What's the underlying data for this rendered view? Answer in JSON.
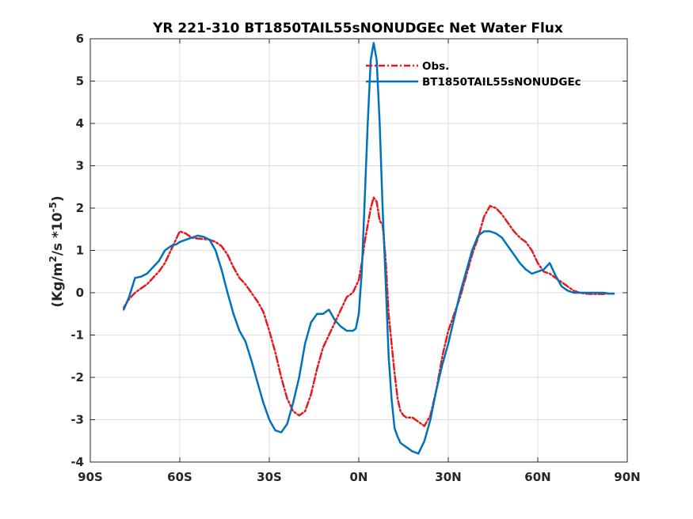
{
  "chart_data": {
    "type": "line",
    "title": "YR 221-310 BT1850TAIL55sNONUDGEc  Net Water Flux",
    "ylabel": {
      "prefix": "(Kg/m",
      "sup1": "2",
      "mid": "/s *10",
      "sup2": "-5",
      "suffix": ")"
    },
    "xlabel": "",
    "xlim": [
      -90,
      90
    ],
    "ylim": [
      -4,
      6
    ],
    "xticks": [
      -90,
      -60,
      -30,
      0,
      30,
      60,
      90
    ],
    "xtick_labels": [
      "90S",
      "60S",
      "30S",
      "0N",
      "30N",
      "60N",
      "90N"
    ],
    "yticks": [
      -4,
      -3,
      -2,
      -1,
      0,
      1,
      2,
      3,
      4,
      5,
      6
    ],
    "ytick_labels": [
      "-4",
      "-3",
      "-2",
      "-1",
      "0",
      "1",
      "2",
      "3",
      "4",
      "5",
      "6"
    ],
    "grid": true,
    "legend_position": "top-right",
    "series": [
      {
        "name": "Obs.",
        "color": "#e41a1c",
        "style": "dash-dot",
        "x": [
          -78.8,
          -77,
          -75,
          -73,
          -71,
          -69,
          -67,
          -65,
          -63,
          -61,
          -60,
          -58,
          -56,
          -54,
          -52,
          -50,
          -48,
          -46,
          -44,
          -42,
          -40,
          -38,
          -36,
          -34,
          -32,
          -30,
          -28,
          -26,
          -24,
          -22,
          -20,
          -18,
          -16,
          -14,
          -12,
          -10,
          -8,
          -6,
          -4,
          -2,
          0,
          1,
          2,
          3,
          4,
          5,
          6,
          7,
          8,
          9,
          10,
          11,
          12,
          13,
          14,
          15,
          16,
          18,
          20,
          22,
          24,
          26,
          28,
          30,
          32,
          34,
          36,
          38,
          40,
          42,
          44,
          46,
          48,
          50,
          52,
          54,
          56,
          58,
          60,
          62,
          64,
          66,
          68,
          70,
          72,
          74,
          76,
          78,
          80,
          82,
          84,
          85.5
        ],
        "y": [
          -0.35,
          -0.15,
          0.0,
          0.1,
          0.2,
          0.35,
          0.5,
          0.7,
          1.0,
          1.3,
          1.45,
          1.4,
          1.3,
          1.28,
          1.27,
          1.25,
          1.2,
          1.1,
          0.9,
          0.6,
          0.35,
          0.2,
          0.0,
          -0.2,
          -0.45,
          -0.9,
          -1.4,
          -2.0,
          -2.5,
          -2.8,
          -2.9,
          -2.8,
          -2.4,
          -1.8,
          -1.3,
          -1.0,
          -0.7,
          -0.4,
          -0.1,
          0.0,
          0.3,
          0.7,
          1.2,
          1.6,
          2.0,
          2.25,
          2.15,
          1.7,
          1.6,
          0.8,
          -0.5,
          -1.2,
          -1.9,
          -2.5,
          -2.8,
          -2.9,
          -2.95,
          -2.95,
          -3.05,
          -3.15,
          -2.9,
          -2.3,
          -1.5,
          -0.9,
          -0.5,
          -0.1,
          0.4,
          0.9,
          1.3,
          1.8,
          2.05,
          2.0,
          1.85,
          1.65,
          1.45,
          1.3,
          1.2,
          1.0,
          0.7,
          0.5,
          0.45,
          0.35,
          0.25,
          0.15,
          0.05,
          0.0,
          -0.02,
          -0.03,
          -0.03,
          -0.03,
          -0.02,
          -0.02
        ]
      },
      {
        "name": "BT1850TAIL55sNONUDGEc",
        "color": "#0072bd",
        "style": "solid",
        "x": [
          -78.8,
          -77,
          -75,
          -73,
          -71,
          -69,
          -67,
          -65,
          -63,
          -61,
          -60,
          -58,
          -56,
          -54,
          -52,
          -50,
          -48,
          -46,
          -44,
          -42,
          -40,
          -38,
          -36,
          -34,
          -32,
          -30,
          -28,
          -26,
          -24,
          -22,
          -20,
          -18,
          -16,
          -14,
          -12,
          -10,
          -8,
          -6,
          -4,
          -2,
          -1,
          0,
          1,
          2,
          3,
          4,
          5,
          6,
          7,
          8,
          9,
          10,
          11,
          12,
          13,
          14,
          15,
          16,
          18,
          20,
          22,
          24,
          26,
          28,
          30,
          32,
          34,
          36,
          38,
          40,
          42,
          44,
          46,
          48,
          50,
          52,
          54,
          56,
          58,
          60,
          62,
          64,
          66,
          68,
          70,
          72,
          74,
          76,
          78,
          80,
          82,
          84,
          85.5
        ],
        "y": [
          -0.4,
          -0.1,
          0.35,
          0.38,
          0.45,
          0.6,
          0.75,
          1.0,
          1.1,
          1.15,
          1.2,
          1.25,
          1.3,
          1.35,
          1.32,
          1.25,
          1.0,
          0.55,
          0.0,
          -0.5,
          -0.9,
          -1.15,
          -1.6,
          -2.1,
          -2.6,
          -3.0,
          -3.25,
          -3.3,
          -3.1,
          -2.6,
          -2.0,
          -1.2,
          -0.7,
          -0.5,
          -0.5,
          -0.4,
          -0.65,
          -0.8,
          -0.9,
          -0.9,
          -0.85,
          -0.5,
          0.5,
          2.2,
          4.0,
          5.5,
          5.9,
          5.5,
          4.0,
          2.0,
          0.3,
          -1.5,
          -2.5,
          -3.2,
          -3.4,
          -3.55,
          -3.6,
          -3.65,
          -3.75,
          -3.8,
          -3.5,
          -3.0,
          -2.3,
          -1.7,
          -1.2,
          -0.6,
          0.0,
          0.5,
          1.0,
          1.35,
          1.45,
          1.45,
          1.4,
          1.3,
          1.1,
          0.9,
          0.7,
          0.55,
          0.45,
          0.5,
          0.55,
          0.7,
          0.4,
          0.15,
          0.05,
          0.0,
          0.0,
          0.0,
          0.0,
          0.0,
          0.0,
          -0.02,
          -0.02
        ]
      }
    ]
  }
}
